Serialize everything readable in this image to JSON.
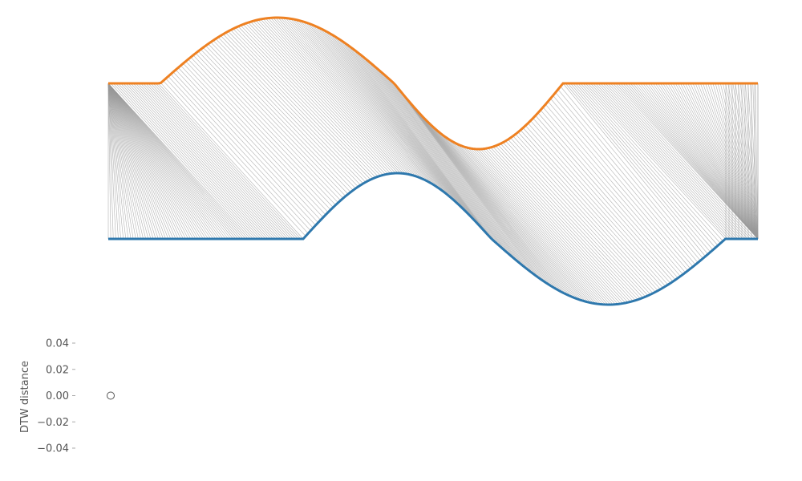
{
  "chart_data": [
    {
      "type": "line",
      "description_free": true,
      "title": "",
      "xlabel": "",
      "ylabel": "",
      "axes_visible": false,
      "series": [
        {
          "key": "series_a",
          "color": "#ee8122",
          "baseline": 0,
          "flat_until": 0.08,
          "bump_up": {
            "from": 0.08,
            "to": 0.44,
            "peak": 1.0
          },
          "dip": {
            "from": 0.44,
            "to": 0.7,
            "trough": -1.0
          },
          "flat_after": 0.7
        },
        {
          "key": "series_b",
          "color": "#2e78ad",
          "baseline": 0,
          "flat_until": 0.3,
          "bump_up": {
            "from": 0.3,
            "to": 0.59,
            "peak": 1.0
          },
          "dip": {
            "from": 0.59,
            "to": 0.95,
            "trough": -1.0
          },
          "flat_after": 0.95
        }
      ],
      "alignment_lines": {
        "color": "#9a9a9a",
        "kind": "dtw-warping-path"
      }
    },
    {
      "type": "scatter",
      "title": "",
      "xlabel": "",
      "ylabel": "DTW distance",
      "ylim": [
        -0.05,
        0.05
      ],
      "yticks": [
        0.04,
        0.02,
        0.0,
        -0.02,
        -0.04
      ],
      "ytick_labels": [
        "0.04",
        "0.02",
        "0.00",
        "−0.02",
        "−0.04"
      ],
      "points": [
        {
          "x": 0,
          "y": 0.0
        }
      ],
      "marker": "hollow-circle"
    }
  ]
}
